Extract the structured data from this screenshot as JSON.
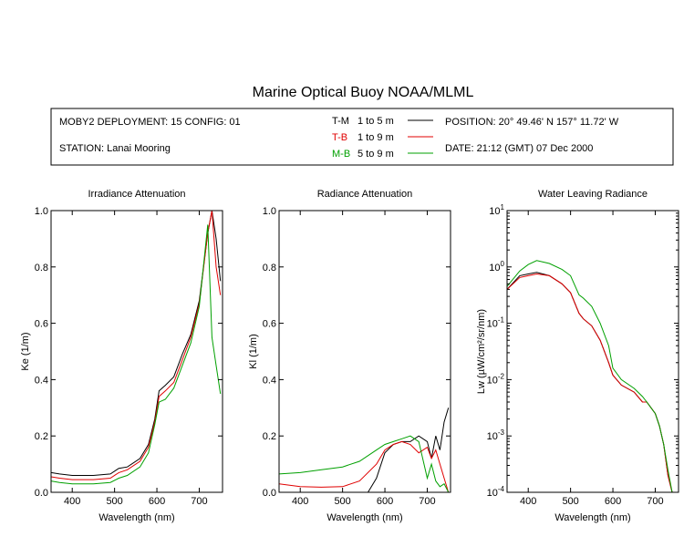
{
  "title": "Marine Optical Buoy NOAA/MLML",
  "info": {
    "deployment": "MOBY2 DEPLOYMENT: 15 CONFIG: 01",
    "station": "STATION: Lanai Mooring",
    "position": "POSITION: 20° 49.46' N   157° 11.72' W",
    "date": "DATE: 21:12 (GMT) 07 Dec 2000"
  },
  "legend": [
    {
      "code": "T-M",
      "range": "1 to 5  m",
      "color": "#000000"
    },
    {
      "code": "T-B",
      "range": "1 to 9  m",
      "color": "#e00000"
    },
    {
      "code": "M-B",
      "range": "5 to 9  m",
      "color": "#00a000"
    }
  ],
  "chart_data": [
    {
      "type": "line",
      "title": "Irradiance Attenuation",
      "xlabel": "Wavelength (nm)",
      "ylabel": "Ke  (1/m)",
      "xlim": [
        350,
        755
      ],
      "ylim": [
        0,
        1.0
      ],
      "yscale": "linear",
      "xticks": [
        400,
        500,
        600,
        700
      ],
      "xtick_labels": [
        "400",
        "500",
        "600",
        "700"
      ],
      "yticks": [
        0,
        0.2,
        0.4,
        0.6,
        0.8,
        1.0
      ],
      "ytick_labels": [
        "0.0",
        "0.2",
        "0.4",
        "0.6",
        "0.8",
        "1.0"
      ],
      "series": [
        {
          "name": "T-M",
          "color": "#000000",
          "x": [
            350,
            370,
            400,
            450,
            490,
            510,
            530,
            560,
            580,
            595,
            605,
            620,
            640,
            660,
            680,
            700,
            720,
            730,
            740,
            750
          ],
          "y": [
            0.07,
            0.065,
            0.06,
            0.06,
            0.065,
            0.085,
            0.09,
            0.12,
            0.17,
            0.26,
            0.36,
            0.38,
            0.41,
            0.49,
            0.56,
            0.68,
            0.92,
            1.0,
            0.9,
            0.75
          ]
        },
        {
          "name": "T-B",
          "color": "#e00000",
          "x": [
            350,
            370,
            400,
            450,
            490,
            510,
            530,
            560,
            580,
            595,
            605,
            620,
            640,
            660,
            680,
            700,
            720,
            730,
            740,
            750
          ],
          "y": [
            0.055,
            0.05,
            0.045,
            0.045,
            0.05,
            0.07,
            0.08,
            0.11,
            0.16,
            0.25,
            0.34,
            0.36,
            0.39,
            0.47,
            0.55,
            0.67,
            0.92,
            1.0,
            0.8,
            0.7
          ]
        },
        {
          "name": "M-B",
          "color": "#00a000",
          "x": [
            350,
            370,
            400,
            450,
            490,
            510,
            530,
            560,
            580,
            595,
            605,
            620,
            640,
            660,
            680,
            700,
            720,
            730,
            740,
            750
          ],
          "y": [
            0.04,
            0.035,
            0.03,
            0.03,
            0.035,
            0.05,
            0.06,
            0.09,
            0.14,
            0.24,
            0.32,
            0.33,
            0.37,
            0.45,
            0.53,
            0.66,
            0.95,
            0.55,
            0.45,
            0.35
          ]
        }
      ]
    },
    {
      "type": "line",
      "title": "Radiance Attenuation",
      "xlabel": "Wavelength (nm)",
      "ylabel": "Kl  (1/m)",
      "xlim": [
        350,
        755
      ],
      "ylim": [
        0,
        1.0
      ],
      "yscale": "linear",
      "xticks": [
        400,
        500,
        600,
        700
      ],
      "xtick_labels": [
        "400",
        "500",
        "600",
        "700"
      ],
      "yticks": [
        0,
        0.2,
        0.4,
        0.6,
        0.8,
        1.0
      ],
      "ytick_labels": [
        "0.0",
        "0.2",
        "0.4",
        "0.6",
        "0.8",
        "1.0"
      ],
      "series": [
        {
          "name": "T-M",
          "color": "#000000",
          "x": [
            560,
            580,
            600,
            620,
            640,
            660,
            680,
            700,
            710,
            720,
            730,
            740,
            750
          ],
          "y": [
            0.0,
            0.05,
            0.14,
            0.17,
            0.18,
            0.18,
            0.2,
            0.18,
            0.12,
            0.2,
            0.15,
            0.25,
            0.3
          ]
        },
        {
          "name": "T-B",
          "color": "#e00000",
          "x": [
            350,
            400,
            450,
            500,
            540,
            580,
            600,
            620,
            640,
            660,
            680,
            700,
            710,
            720,
            730,
            740,
            750
          ],
          "y": [
            0.03,
            0.02,
            0.018,
            0.02,
            0.04,
            0.1,
            0.15,
            0.17,
            0.18,
            0.17,
            0.14,
            0.16,
            0.12,
            0.15,
            0.1,
            0.05,
            0.0
          ]
        },
        {
          "name": "M-B",
          "color": "#00a000",
          "x": [
            350,
            400,
            450,
            500,
            540,
            580,
            600,
            620,
            640,
            660,
            680,
            700,
            710,
            720,
            730,
            740,
            750
          ],
          "y": [
            0.065,
            0.07,
            0.08,
            0.09,
            0.11,
            0.15,
            0.17,
            0.18,
            0.19,
            0.2,
            0.18,
            0.05,
            0.1,
            0.04,
            0.02,
            0.03,
            0.0
          ]
        }
      ]
    },
    {
      "type": "line",
      "title": "Water Leaving Radiance",
      "xlabel": "Wavelength (nm)",
      "ylabel": "Lw  (µW/cm²/sr/nm)",
      "xlim": [
        350,
        755
      ],
      "ylim": [
        0.0001,
        10
      ],
      "yscale": "log",
      "xticks": [
        400,
        500,
        600,
        700
      ],
      "xtick_labels": [
        "400",
        "500",
        "600",
        "700"
      ],
      "yticks": [
        10,
        1,
        0.1,
        0.01,
        0.001,
        0.0001
      ],
      "ytick_labels": [
        {
          "base": "10",
          "exp": "1"
        },
        {
          "base": "10",
          "exp": "0"
        },
        {
          "base": "10",
          "exp": "-1"
        },
        {
          "base": "10",
          "exp": "-2"
        },
        {
          "base": "10",
          "exp": "-3"
        },
        {
          "base": "10",
          "exp": "-4"
        }
      ],
      "series": [
        {
          "name": "T-M",
          "color": "#000000",
          "x": [
            350,
            380,
            400,
            420,
            450,
            480,
            500,
            520,
            530,
            550,
            570,
            590,
            600,
            620,
            650,
            670,
            680,
            700,
            710,
            720,
            730,
            740
          ],
          "y": [
            0.4,
            0.7,
            0.75,
            0.8,
            0.7,
            0.5,
            0.35,
            0.15,
            0.12,
            0.09,
            0.05,
            0.02,
            0.012,
            0.008,
            0.006,
            0.004,
            0.004,
            0.0025,
            0.0015,
            0.0007,
            0.0002,
            0.0001
          ]
        },
        {
          "name": "T-B",
          "color": "#e00000",
          "x": [
            350,
            380,
            400,
            420,
            450,
            480,
            500,
            520,
            530,
            550,
            570,
            590,
            600,
            620,
            650,
            670,
            680,
            700,
            710,
            720,
            730,
            740
          ],
          "y": [
            0.4,
            0.65,
            0.7,
            0.75,
            0.7,
            0.5,
            0.35,
            0.15,
            0.12,
            0.09,
            0.05,
            0.02,
            0.012,
            0.008,
            0.006,
            0.004,
            0.004,
            0.0025,
            0.0015,
            0.0007,
            0.0002,
            0.0001
          ]
        },
        {
          "name": "M-B",
          "color": "#00a000",
          "x": [
            350,
            380,
            400,
            420,
            450,
            480,
            500,
            520,
            530,
            550,
            570,
            590,
            600,
            620,
            650,
            670,
            680,
            700,
            710,
            720,
            730,
            740
          ],
          "y": [
            0.45,
            0.85,
            1.1,
            1.3,
            1.15,
            0.9,
            0.7,
            0.32,
            0.28,
            0.2,
            0.1,
            0.04,
            0.016,
            0.01,
            0.007,
            0.005,
            0.004,
            0.0025,
            0.0015,
            0.0007,
            0.00025,
            0.0001
          ]
        }
      ]
    }
  ]
}
